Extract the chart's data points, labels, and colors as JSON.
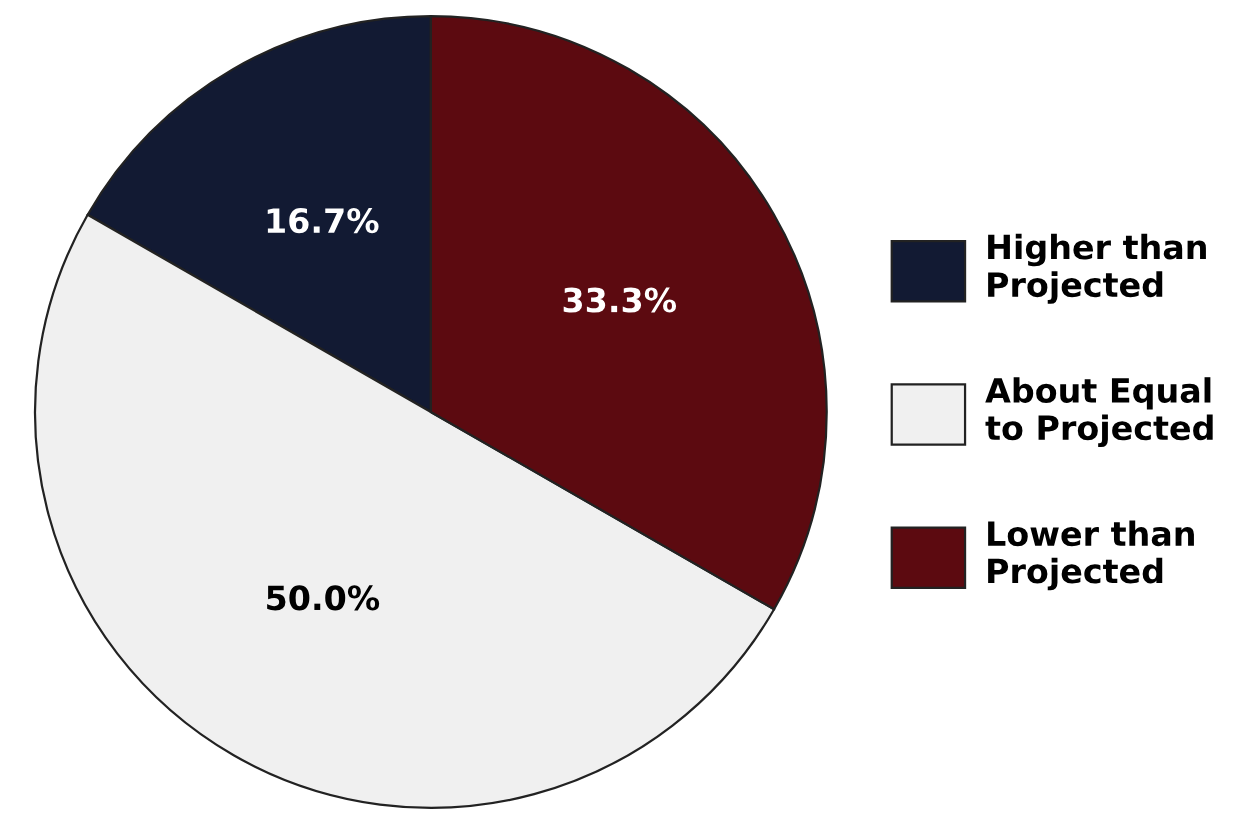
{
  "chart_data": {
    "type": "pie",
    "categories": [
      "Higher than\nProjected",
      "About Equal\nto Projected",
      "Lower than\nProjected"
    ],
    "values": [
      16.7,
      50.0,
      33.3
    ],
    "colors": [
      "#121a33",
      "#f0f0f0",
      "#5c0a10"
    ],
    "value_labels": [
      "16.7%",
      "50.0%",
      "33.3%"
    ],
    "legend": "right"
  }
}
